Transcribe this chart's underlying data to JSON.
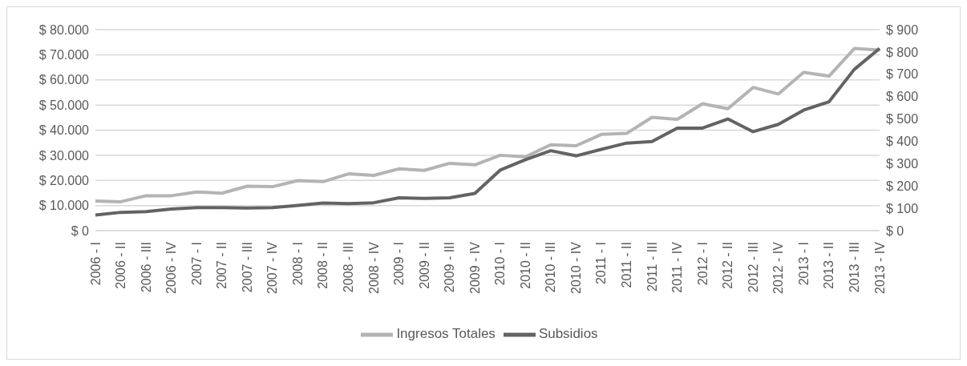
{
  "chart_data": {
    "type": "line",
    "categories": [
      "2006 - I",
      "2006 - II",
      "2006 - III",
      "2006 - IV",
      "2007 - I",
      "2007 - II",
      "2007 - III",
      "2007 - IV",
      "2008 - I",
      "2008 - II",
      "2008 - III",
      "2008 - IV",
      "2009 - I",
      "2009 - II",
      "2009 - III",
      "2009 - IV",
      "2010 - I",
      "2010 - II",
      "2010 - III",
      "2010 - IV",
      "2011 - I",
      "2011 - II",
      "2011 - III",
      "2011 - IV",
      "2012 - I",
      "2012 - II",
      "2012 - III",
      "2012 - IV",
      "2013 - I",
      "2013 - II",
      "2013 - III",
      "2013 - IV"
    ],
    "series": [
      {
        "name": "Ingresos Totales",
        "color": "#b4b4b4",
        "values": [
          11800,
          11500,
          13900,
          13900,
          15400,
          14900,
          17700,
          17500,
          19900,
          19500,
          22600,
          22000,
          24600,
          24000,
          26800,
          26200,
          30000,
          29400,
          34200,
          33800,
          38300,
          38700,
          45100,
          44300,
          50500,
          48500,
          57000,
          54400,
          63000,
          61500,
          72500,
          71900
        ]
      },
      {
        "name": "Subsidios",
        "color": "#636363",
        "axis": "y2",
        "values": [
          70,
          82,
          85,
          97,
          103,
          103,
          101,
          103,
          113,
          124,
          121,
          125,
          147,
          144,
          147,
          167,
          271,
          318,
          358,
          335,
          364,
          392,
          399,
          459,
          459,
          500,
          443,
          476,
          540,
          577,
          722,
          816
        ]
      }
    ],
    "ylim": [
      0,
      80000
    ],
    "yticks": [
      {
        "value": 0,
        "label": "$ 0"
      },
      {
        "value": 10000,
        "label": "$ 10.000"
      },
      {
        "value": 20000,
        "label": "$ 20.000"
      },
      {
        "value": 30000,
        "label": "$ 30.000"
      },
      {
        "value": 40000,
        "label": "$ 40.000"
      },
      {
        "value": 50000,
        "label": "$ 50.000"
      },
      {
        "value": 60000,
        "label": "$ 60.000"
      },
      {
        "value": 70000,
        "label": "$ 70.000"
      },
      {
        "value": 80000,
        "label": "$ 80.000"
      }
    ],
    "y2lim": [
      0,
      900
    ],
    "y2ticks": [
      {
        "value": 0,
        "label": "$ 0"
      },
      {
        "value": 100,
        "label": "$ 100"
      },
      {
        "value": 200,
        "label": "$ 200"
      },
      {
        "value": 300,
        "label": "$ 300"
      },
      {
        "value": 400,
        "label": "$ 400"
      },
      {
        "value": 500,
        "label": "$ 500"
      },
      {
        "value": 600,
        "label": "$ 600"
      },
      {
        "value": 700,
        "label": "$ 700"
      },
      {
        "value": 800,
        "label": "$ 800"
      },
      {
        "value": 900,
        "label": "$ 900"
      }
    ],
    "grid": "y",
    "legend": "bottom",
    "marker": "none",
    "line_style": "solid"
  }
}
